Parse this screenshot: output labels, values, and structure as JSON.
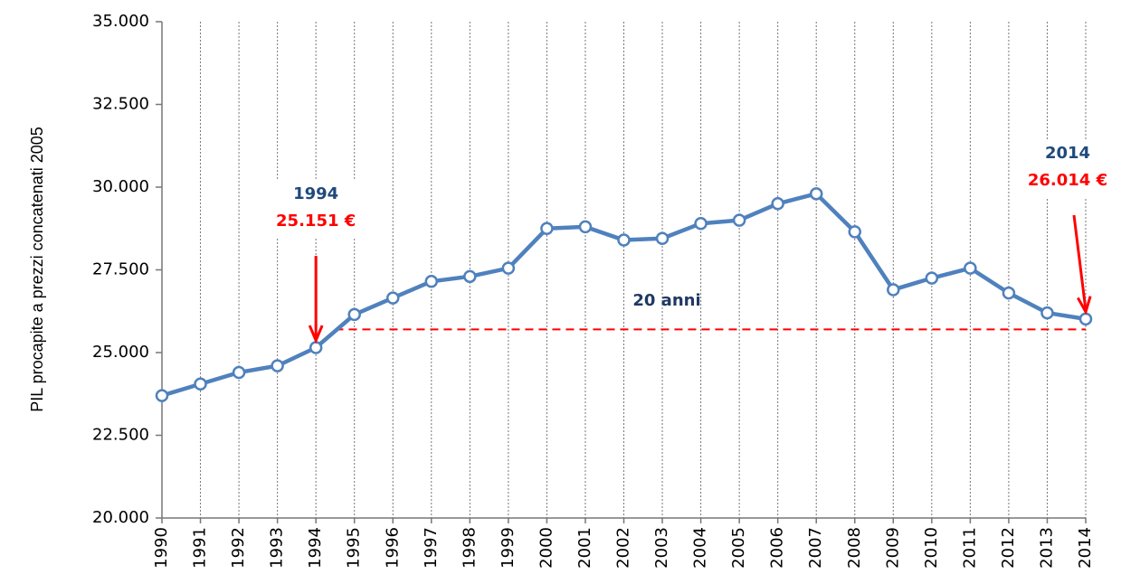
{
  "chart_data": {
    "type": "line",
    "y_label": "PIL procapite a prezzi concatenati 2005",
    "categories": [
      "1990",
      "1991",
      "1992",
      "1993",
      "1994",
      "1995",
      "1996",
      "1997",
      "1998",
      "1999",
      "2000",
      "2001",
      "2002",
      "2003",
      "2004",
      "2005",
      "2006",
      "2007",
      "2008",
      "2009",
      "2010",
      "2011",
      "2012",
      "2013",
      "2014"
    ],
    "series": [
      {
        "color": "#4f81bd",
        "values": [
          23700,
          24050,
          24400,
          24600,
          25151,
          26150,
          26650,
          27150,
          27300,
          27550,
          28750,
          28800,
          28400,
          28450,
          28900,
          29000,
          29500,
          29800,
          28650,
          26900,
          27250,
          27550,
          26800,
          26200,
          26014
        ]
      }
    ],
    "ylim": [
      20000,
      35000
    ],
    "yticks": [
      {
        "value": 20000,
        "label": "20.000"
      },
      {
        "value": 22500,
        "label": "22.500"
      },
      {
        "value": 25000,
        "label": "25.000"
      },
      {
        "value": 27500,
        "label": "27.500"
      },
      {
        "value": 30000,
        "label": "30.000"
      },
      {
        "value": 32500,
        "label": "32.500"
      },
      {
        "value": 35000,
        "label": "35.000"
      }
    ],
    "grid": true,
    "reference_line": {
      "value": 25700,
      "color": "#ff0000"
    },
    "annotations": [
      {
        "year": "1994",
        "value_label": "25.151 €"
      },
      {
        "year": "2014",
        "value_label": "26.014 €"
      }
    ],
    "center_label": "20 anni"
  }
}
